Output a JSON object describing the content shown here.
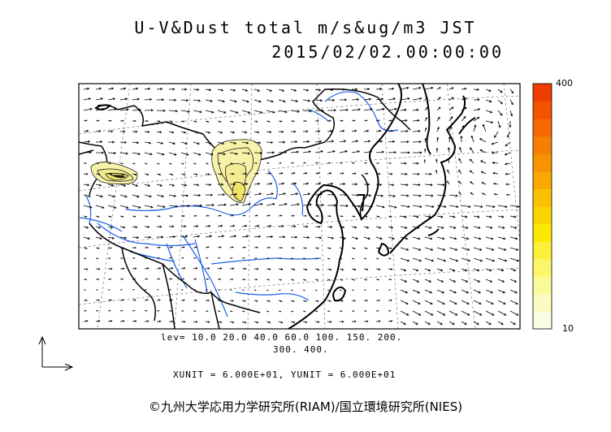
{
  "title": {
    "line1": "U-V&Dust total m/s&ug/m3 JST",
    "line2": "2015/02/02.00:00:00"
  },
  "legend": {
    "lev_line1": "lev= 10.0 20.0 40.0 60.0 100. 150. 200.",
    "lev_line2": "300. 400.",
    "units_line": "XUNIT = 6.000E+01, YUNIT = 6.000E+01"
  },
  "colorbar": {
    "max_label": "400",
    "min_label": "10",
    "levels": [
      10,
      20,
      40,
      60,
      100,
      150,
      200,
      300,
      400
    ],
    "colors": [
      "#fdfde6",
      "#fcfcc2",
      "#fbfa9a",
      "#fbf66c",
      "#fbef37",
      "#fce800",
      "#fbd400",
      "#fbc000",
      "#f9a800",
      "#f89300",
      "#f77e00",
      "#f56800",
      "#f35400",
      "#ef3c00"
    ]
  },
  "colors": {
    "dust_fill": "#f7f2a8",
    "dust_line": "#1a1a1a",
    "river": "#1a5ee8",
    "coast": "#000000",
    "border": "#000000",
    "arrow": "#000000"
  },
  "icons": {
    "unit_vector": "unit-vector-arrow-icon"
  },
  "copyright": "©九州大学応用力学研究所(RIAM)/国立環境研究所(NIES)"
}
